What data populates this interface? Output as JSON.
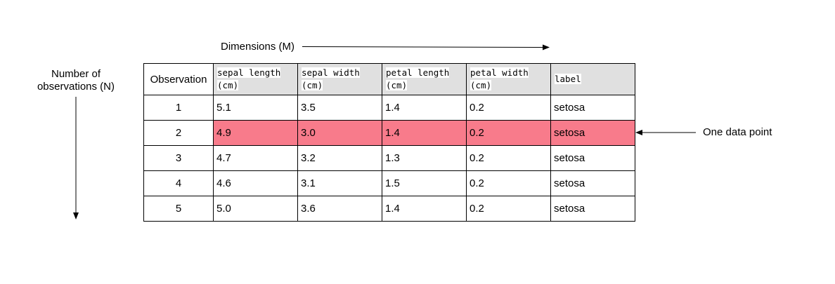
{
  "dimensions_label": "Dimensions (M)",
  "observations_label": {
    "line1": "Number of",
    "line2": "observations (N)"
  },
  "data_point_label": "One data point",
  "table": {
    "headers": {
      "observation": "Observation",
      "columns": [
        {
          "line1": "sepal length",
          "line2": "(cm)"
        },
        {
          "line1": "sepal width",
          "line2": "(cm)"
        },
        {
          "line1": "petal length",
          "line2": "(cm)"
        },
        {
          "line1": "petal width",
          "line2": "(cm)"
        },
        {
          "line1": "label",
          "line2": ""
        }
      ]
    },
    "rows": [
      {
        "obs": "1",
        "values": [
          "5.1",
          "3.5",
          "1.4",
          "0.2",
          "setosa"
        ]
      },
      {
        "obs": "2",
        "values": [
          "4.9",
          "3.0",
          "1.4",
          "0.2",
          "setosa"
        ]
      },
      {
        "obs": "3",
        "values": [
          "4.7",
          "3.2",
          "1.3",
          "0.2",
          "setosa"
        ]
      },
      {
        "obs": "4",
        "values": [
          "4.6",
          "3.1",
          "1.5",
          "0.2",
          "setosa"
        ]
      },
      {
        "obs": "5",
        "values": [
          "5.0",
          "3.6",
          "1.4",
          "0.2",
          "setosa"
        ]
      }
    ],
    "highlighted_row": 1
  },
  "colors": {
    "highlight": "#f87b8b",
    "header_background": "#e0e0e0"
  }
}
